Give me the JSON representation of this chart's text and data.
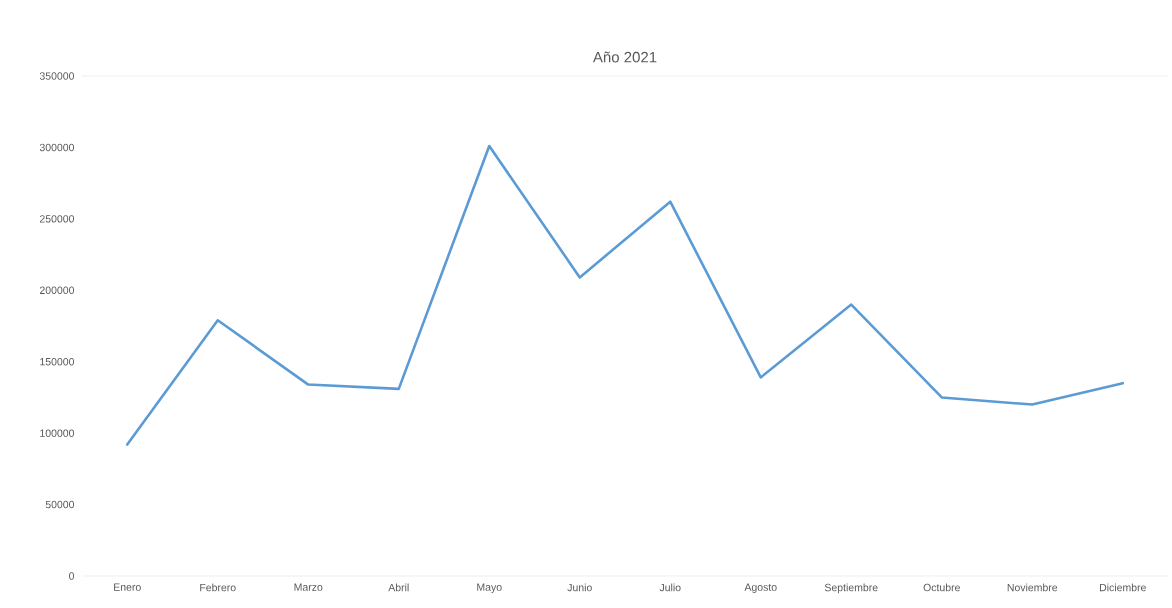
{
  "chart_data": {
    "type": "line",
    "title": "Año 2021",
    "categories": [
      "Enero",
      "Febrero",
      "Marzo",
      "Abril",
      "Mayo",
      "Junio",
      "Julio",
      "Agosto",
      "Septiembre",
      "Octubre",
      "Noviembre",
      "Diciembre"
    ],
    "values": [
      92000,
      179000,
      134000,
      131000,
      301000,
      209000,
      262000,
      139000,
      190000,
      125000,
      120000,
      135000
    ],
    "color": "#5b9bd5",
    "marker": "none",
    "line_style": "solid",
    "ylim": [
      0,
      350000
    ],
    "yticks": [
      0,
      50000,
      100000,
      150000,
      200000,
      250000,
      300000,
      350000
    ],
    "grid": false
  }
}
